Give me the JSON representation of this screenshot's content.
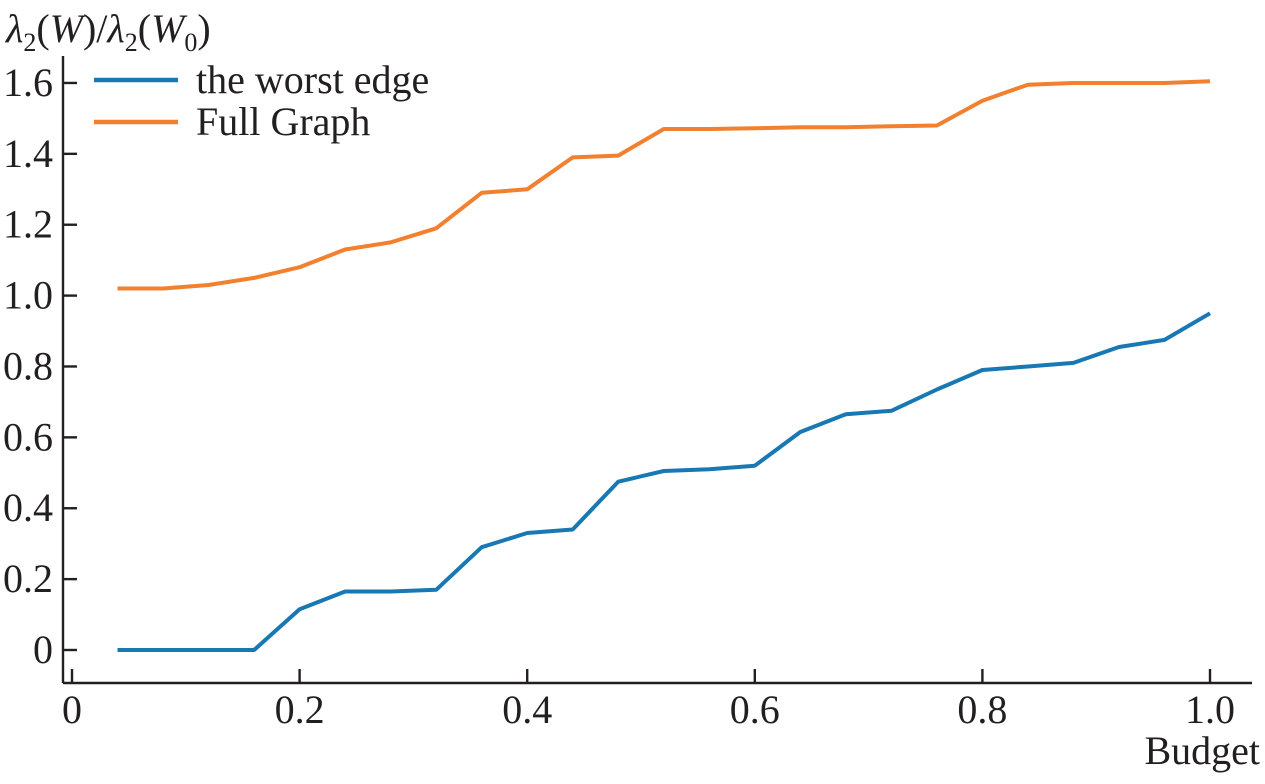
{
  "figure": {
    "background": "#ffffff",
    "text_color": "#231f20",
    "axis_color": "#231f20"
  },
  "chart_data": {
    "type": "line",
    "title": "",
    "xlabel": "Budget",
    "ylabel": "λ2(W)/λ2(W0)",
    "ylabel_segments": [
      {
        "t": "λ",
        "i": true
      },
      {
        "t": "2",
        "sub": true
      },
      {
        "t": "(",
        "i": false
      },
      {
        "t": "W",
        "i": true
      },
      {
        "t": ")/",
        "i": false
      },
      {
        "t": "λ",
        "i": true
      },
      {
        "t": "2",
        "sub": true
      },
      {
        "t": "(",
        "i": false
      },
      {
        "t": "W",
        "i": true
      },
      {
        "t": "0",
        "sub": true
      },
      {
        "t": ")",
        "i": false
      }
    ],
    "x": [
      0.04,
      0.08,
      0.12,
      0.16,
      0.2,
      0.24,
      0.28,
      0.32,
      0.36,
      0.4,
      0.44,
      0.48,
      0.52,
      0.56,
      0.6,
      0.64,
      0.68,
      0.72,
      0.76,
      0.8,
      0.84,
      0.88,
      0.92,
      0.96,
      1.0
    ],
    "series": [
      {
        "name": "the worst edge",
        "color": "#1878b4",
        "values": [
          0,
          0,
          0,
          0,
          0.115,
          0.165,
          0.165,
          0.17,
          0.29,
          0.33,
          0.34,
          0.475,
          0.505,
          0.51,
          0.52,
          0.615,
          0.665,
          0.675,
          0.735,
          0.79,
          0.8,
          0.81,
          0.855,
          0.875,
          0.95
        ]
      },
      {
        "name": "Full Graph",
        "color": "#f2802e",
        "values": [
          1.02,
          1.02,
          1.03,
          1.05,
          1.08,
          1.13,
          1.15,
          1.19,
          1.29,
          1.3,
          1.39,
          1.395,
          1.47,
          1.47,
          1.472,
          1.475,
          1.475,
          1.478,
          1.48,
          1.55,
          1.595,
          1.6,
          1.6,
          1.6,
          1.605
        ]
      }
    ],
    "xlim": [
      -0.008,
      1.048
    ],
    "ylim": [
      -0.093,
      1.676
    ],
    "x_ticks": [
      0,
      0.2,
      0.4,
      0.6,
      0.8,
      1.0
    ],
    "x_tick_labels": [
      "0",
      "0.2",
      "0.4",
      "0.6",
      "0.8",
      "1.0"
    ],
    "y_ticks": [
      0,
      0.2,
      0.4,
      0.6,
      0.8,
      1.0,
      1.2,
      1.4,
      1.6
    ],
    "y_tick_labels": [
      "0",
      "0.2",
      "0.4",
      "0.6",
      "0.8",
      "1.0",
      "1.2",
      "1.4",
      "1.6"
    ],
    "grid": false,
    "legend_position": "top-left"
  }
}
